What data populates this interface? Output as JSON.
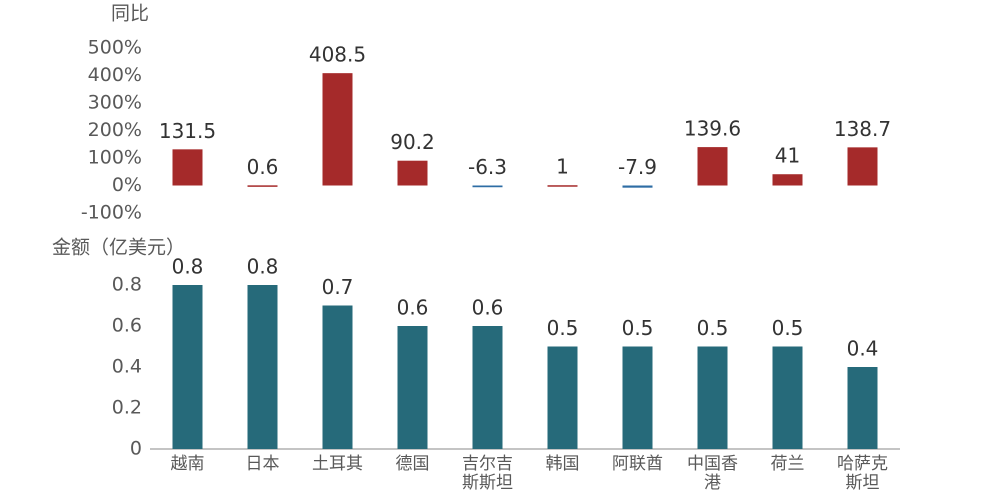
{
  "chart_data": [
    {
      "type": "bar",
      "y_axis_title": "同比",
      "categories": [
        "越南",
        "日本",
        "土耳其",
        "德国",
        "吉尔吉斯斯坦",
        "韩国",
        "阿联酋",
        "中国香港",
        "荷兰",
        "哈萨克斯坦"
      ],
      "values": [
        131.5,
        0.6,
        408.5,
        90.2,
        -6.3,
        1,
        -7.9,
        139.6,
        41,
        138.7
      ],
      "color": "#a52a2a",
      "negative_color": "#2e6da4",
      "ylim": [
        -100,
        500
      ],
      "yticks": [
        {
          "value": -100,
          "label": "-100%"
        },
        {
          "value": 0,
          "label": "0%"
        },
        {
          "value": 100,
          "label": "100%"
        },
        {
          "value": 200,
          "label": "200%"
        },
        {
          "value": 300,
          "label": "300%"
        },
        {
          "value": 400,
          "label": "400%"
        },
        {
          "value": 500,
          "label": "500%"
        }
      ]
    },
    {
      "type": "bar",
      "y_axis_title": "金额（亿美元）",
      "categories": [
        "越南",
        "日本",
        "土耳其",
        "德国",
        "吉尔吉斯斯坦",
        "韩国",
        "阿联酋",
        "中国香港",
        "荷兰",
        "哈萨克斯坦"
      ],
      "values": [
        0.8,
        0.8,
        0.7,
        0.6,
        0.6,
        0.5,
        0.5,
        0.5,
        0.5,
        0.4
      ],
      "color": "#266a7a",
      "ylim": [
        0,
        0.8
      ],
      "yticks": [
        0,
        0.2,
        0.4,
        0.6,
        0.8
      ]
    }
  ]
}
